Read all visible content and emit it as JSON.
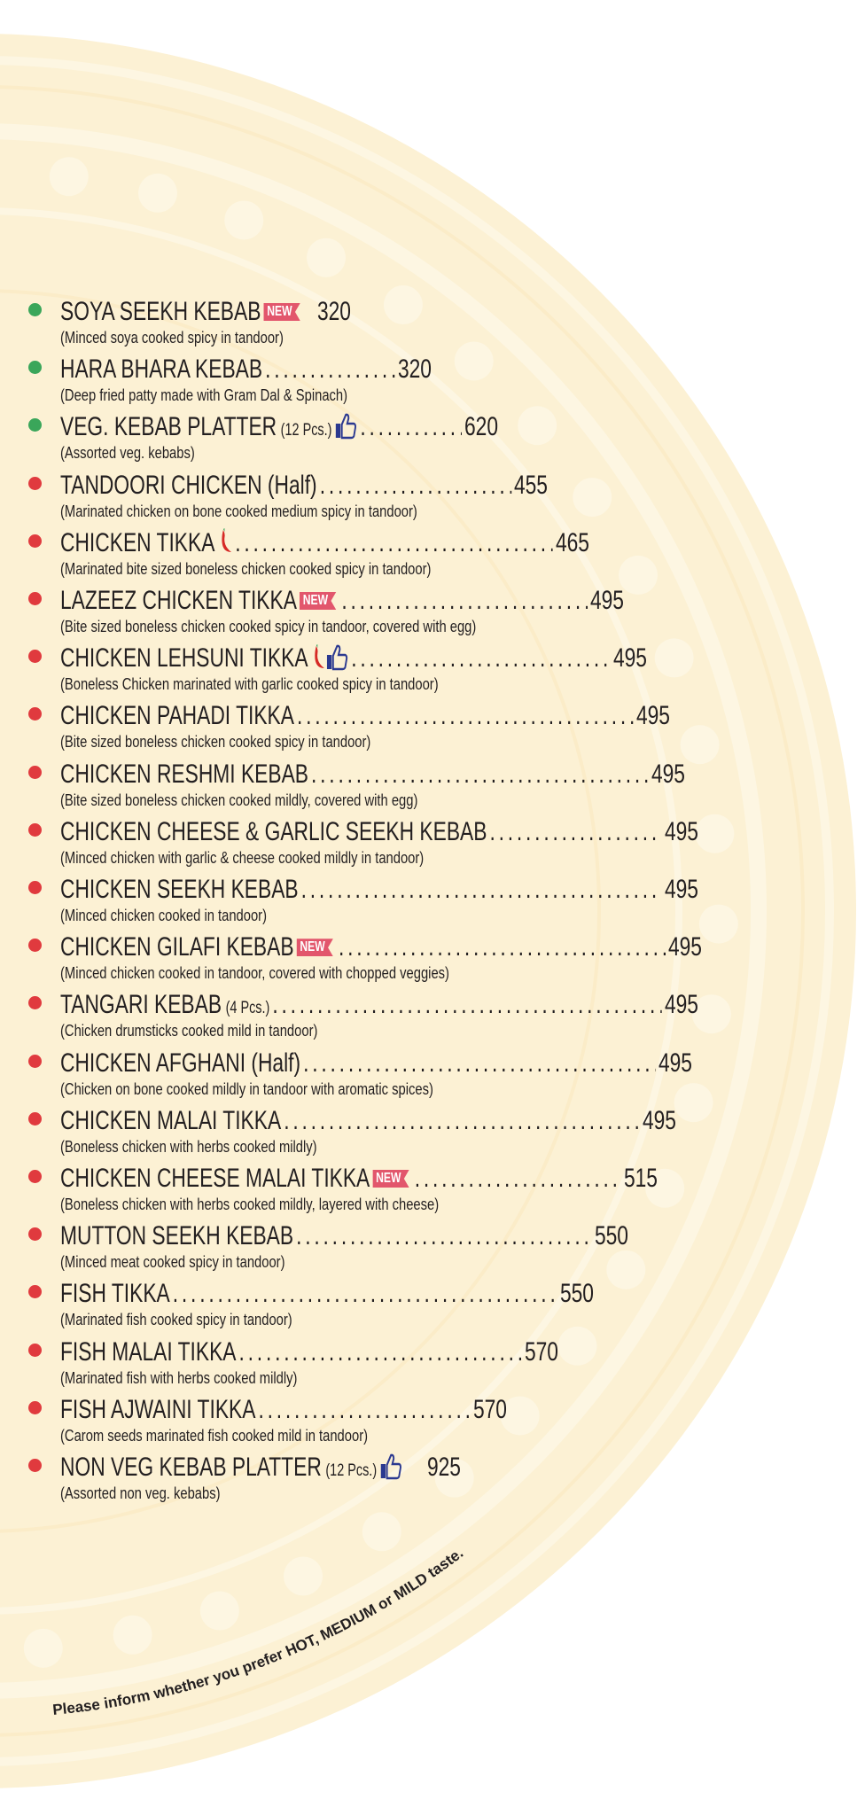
{
  "colors": {
    "veg": "#3aa65a",
    "nonveg": "#e03a3e",
    "new_badge": "#e2566c",
    "thumb": "#2b3990",
    "chili": "#d62a26",
    "background_disc": "#fcf1d4"
  },
  "badges": {
    "new": "NEW"
  },
  "items": [
    {
      "name": "SOYA SEEKH KEBAB",
      "sub": "",
      "icons": [
        "new-badge"
      ],
      "leader": false,
      "price": "320",
      "desc": "(Minced soya cooked spicy in tandoor)",
      "type": "veg"
    },
    {
      "name": "HARA BHARA KEBAB",
      "sub": "",
      "icons": [],
      "leader": true,
      "price": "320",
      "desc": "(Deep fried patty made with Gram Dal & Spinach)",
      "type": "veg"
    },
    {
      "name": "VEG. KEBAB PLATTER",
      "sub": "(12 Pcs.)",
      "icons": [
        "thumbs-up"
      ],
      "leader": true,
      "price": "620",
      "desc": "(Assorted veg. kebabs)",
      "type": "veg"
    },
    {
      "name": "TANDOORI CHICKEN (Half)",
      "sub": "",
      "icons": [],
      "leader": true,
      "price": "455",
      "desc": "(Marinated chicken on bone cooked medium spicy in tandoor)",
      "type": "nonveg"
    },
    {
      "name": "CHICKEN TIKKA",
      "sub": "",
      "icons": [
        "chili"
      ],
      "leader": true,
      "price": "465",
      "desc": "(Marinated bite sized boneless chicken cooked spicy in tandoor)",
      "type": "nonveg"
    },
    {
      "name": "LAZEEZ CHICKEN TIKKA",
      "sub": "",
      "icons": [
        "new-badge"
      ],
      "leader": true,
      "price": "495",
      "desc": "(Bite sized boneless chicken cooked spicy in tandoor, covered with egg)",
      "type": "nonveg"
    },
    {
      "name": "CHICKEN LEHSUNI TIKKA",
      "sub": "",
      "icons": [
        "chili",
        "thumbs-up"
      ],
      "leader": true,
      "price": "495",
      "desc": "(Boneless Chicken marinated with garlic cooked spicy in tandoor)",
      "type": "nonveg"
    },
    {
      "name": "CHICKEN PAHADI TIKKA",
      "sub": "",
      "icons": [],
      "leader": true,
      "price": "495",
      "desc": "(Bite sized boneless chicken cooked spicy in tandoor)",
      "type": "nonveg"
    },
    {
      "name": "CHICKEN RESHMI KEBAB",
      "sub": "",
      "icons": [],
      "leader": true,
      "price": "495",
      "desc": "(Bite sized boneless chicken cooked mildly, covered with egg)",
      "type": "nonveg"
    },
    {
      "name": "CHICKEN CHEESE & GARLIC SEEKH KEBAB",
      "sub": "",
      "icons": [],
      "leader": true,
      "price": "495",
      "desc": "(Minced chicken with garlic & cheese cooked mildly in tandoor)",
      "type": "nonveg"
    },
    {
      "name": "CHICKEN SEEKH KEBAB",
      "sub": "",
      "icons": [],
      "leader": true,
      "price": "495",
      "desc": "(Minced chicken cooked in tandoor)",
      "type": "nonveg"
    },
    {
      "name": "CHICKEN GILAFI KEBAB",
      "sub": "",
      "icons": [
        "new-badge"
      ],
      "leader": true,
      "price": "495",
      "desc": "(Minced chicken cooked in tandoor, covered with chopped veggies)",
      "type": "nonveg"
    },
    {
      "name": "TANGARI KEBAB",
      "sub": "(4 Pcs.)",
      "icons": [],
      "leader": true,
      "price": "495",
      "desc": "(Chicken drumsticks cooked mild in tandoor)",
      "type": "nonveg"
    },
    {
      "name": "CHICKEN AFGHANI (Half)",
      "sub": "",
      "icons": [],
      "leader": true,
      "price": "495",
      "desc": "(Chicken on bone cooked mildly in tandoor with aromatic spices)",
      "type": "nonveg"
    },
    {
      "name": "CHICKEN MALAI TIKKA",
      "sub": "",
      "icons": [],
      "leader": true,
      "price": "495",
      "desc": "(Boneless chicken with herbs cooked mildly)",
      "type": "nonveg"
    },
    {
      "name": "CHICKEN CHEESE MALAI TIKKA",
      "sub": "",
      "icons": [
        "new-badge"
      ],
      "leader": true,
      "price": "515",
      "desc": "(Boneless chicken with herbs cooked mildly, layered with cheese)",
      "type": "nonveg"
    },
    {
      "name": "MUTTON SEEKH KEBAB",
      "sub": "",
      "icons": [],
      "leader": true,
      "price": "550",
      "desc": "(Minced meat cooked spicy in tandoor)",
      "type": "nonveg"
    },
    {
      "name": "FISH TIKKA",
      "sub": "",
      "icons": [],
      "leader": true,
      "price": "550",
      "desc": "(Marinated fish cooked spicy in tandoor)",
      "type": "nonveg"
    },
    {
      "name": "FISH MALAI TIKKA",
      "sub": "",
      "icons": [],
      "leader": true,
      "price": "570",
      "desc": "(Marinated fish with herbs cooked mildly)",
      "type": "nonveg"
    },
    {
      "name": "FISH AJWAINI TIKKA",
      "sub": "",
      "icons": [],
      "leader": true,
      "price": "570",
      "desc": "(Carom seeds marinated fish cooked mild in tandoor)",
      "type": "nonveg"
    },
    {
      "name": "NON VEG KEBAB PLATTER",
      "sub": "(12 Pcs.)",
      "icons": [
        "thumbs-up"
      ],
      "leader": false,
      "price": "925",
      "desc": "(Assorted non veg. kebabs)",
      "type": "nonveg"
    }
  ],
  "footer_note": "Please inform whether you prefer HOT, MEDIUM or MILD taste."
}
